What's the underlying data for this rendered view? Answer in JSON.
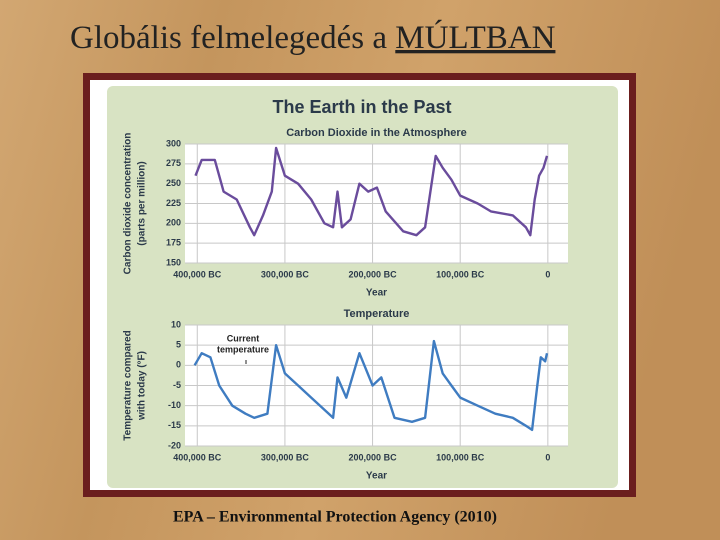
{
  "slide": {
    "title": "Globális felmelegedés a",
    "title_emphasis": "MÚLTBAN",
    "figure_title": "The Earth in the Past",
    "footer": "EPA – Environmental Protection Agency (2010)"
  },
  "chart_data": [
    {
      "type": "line",
      "title": "Carbon Dioxide in the Atmosphere",
      "ylabel": [
        "Carbon dioxide concentration",
        "(parts per million)"
      ],
      "xlabel": "Year",
      "color": "#6a4c9c",
      "x": [
        402000,
        395000,
        380000,
        370000,
        355000,
        340000,
        335000,
        325000,
        315000,
        310000,
        300000,
        285000,
        270000,
        255000,
        245000,
        240000,
        235000,
        225000,
        215000,
        205000,
        195000,
        185000,
        165000,
        150000,
        140000,
        128000,
        120000,
        110000,
        100000,
        80000,
        65000,
        40000,
        25000,
        20000,
        15000,
        10000,
        5000,
        1000
      ],
      "values": [
        260,
        280,
        280,
        240,
        230,
        195,
        185,
        210,
        240,
        295,
        260,
        250,
        230,
        200,
        195,
        240,
        195,
        205,
        250,
        240,
        245,
        215,
        190,
        185,
        195,
        285,
        270,
        255,
        235,
        225,
        215,
        210,
        195,
        185,
        230,
        260,
        270,
        285
      ],
      "xlim": [
        414000,
        -23000
      ],
      "xticks": [
        {
          "value": 400000,
          "label": "400,000 BC"
        },
        {
          "value": 300000,
          "label": "300,000 BC"
        },
        {
          "value": 200000,
          "label": "200,000 BC"
        },
        {
          "value": 100000,
          "label": "100,000 BC"
        },
        0
      ],
      "ylim": [
        150,
        300
      ],
      "yticks": [
        150,
        175,
        200,
        225,
        250,
        275,
        300
      ],
      "grid": true
    },
    {
      "type": "line",
      "title": "Temperature",
      "ylabel": [
        "Temperature compared",
        "with today (°F)"
      ],
      "xlabel": "Year",
      "color": "#3f7cc1",
      "annotation": [
        "Current",
        "temperature"
      ],
      "x": [
        403000,
        395000,
        385000,
        375000,
        360000,
        345000,
        335000,
        320000,
        310000,
        300000,
        285000,
        270000,
        255000,
        245000,
        240000,
        230000,
        215000,
        200000,
        190000,
        175000,
        155000,
        140000,
        130000,
        120000,
        110000,
        100000,
        80000,
        60000,
        40000,
        25000,
        18000,
        12000,
        8000,
        3000,
        1000
      ],
      "values": [
        0,
        3,
        2,
        -5,
        -10,
        -12,
        -13,
        -12,
        5,
        -2,
        -5,
        -8,
        -11,
        -13,
        -3,
        -8,
        3,
        -5,
        -3,
        -13,
        -14,
        -13,
        6,
        -2,
        -5,
        -8,
        -10,
        -12,
        -13,
        -15,
        -16,
        -5,
        2,
        1,
        3
      ],
      "xlim": [
        414000,
        -23000
      ],
      "xticks": [
        {
          "value": 400000,
          "label": "400,000 BC"
        },
        {
          "value": 300000,
          "label": "300,000 BC"
        },
        {
          "value": 200000,
          "label": "200,000 BC"
        },
        {
          "value": 100000,
          "label": "100,000 BC"
        },
        0
      ],
      "ylim": [
        -20,
        10
      ],
      "yticks": [
        -20,
        -15,
        -10,
        -5,
        0,
        5,
        10
      ],
      "grid": true
    }
  ]
}
